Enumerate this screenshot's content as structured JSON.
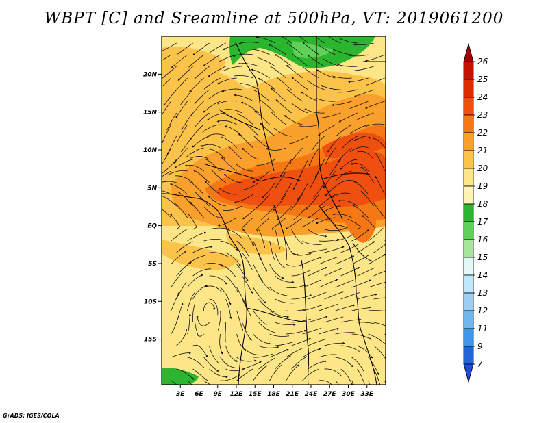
{
  "title": "WBPT [C] and Sreamline at 500hPa, VT: 2019061200",
  "footer": "GrADS: IGES/COLA",
  "map": {
    "lon_range": [
      0,
      36
    ],
    "lat_range": [
      -21,
      25
    ],
    "x_ticks": [
      {
        "value": 3,
        "label": "3E"
      },
      {
        "value": 6,
        "label": "6E"
      },
      {
        "value": 9,
        "label": "9E"
      },
      {
        "value": 12,
        "label": "12E"
      },
      {
        "value": 15,
        "label": "15E"
      },
      {
        "value": 18,
        "label": "18E"
      },
      {
        "value": 21,
        "label": "21E"
      },
      {
        "value": 24,
        "label": "24E"
      },
      {
        "value": 27,
        "label": "27E"
      },
      {
        "value": 30,
        "label": "30E"
      },
      {
        "value": 33,
        "label": "33E"
      }
    ],
    "y_ticks": [
      {
        "value": 20,
        "label": "20N"
      },
      {
        "value": 15,
        "label": "15N"
      },
      {
        "value": 10,
        "label": "10N"
      },
      {
        "value": 5,
        "label": "5N"
      },
      {
        "value": 0,
        "label": "EQ"
      },
      {
        "value": -5,
        "label": "5S"
      },
      {
        "value": -10,
        "label": "10S"
      },
      {
        "value": -15,
        "label": "15S"
      }
    ]
  },
  "colorbar": {
    "levels": [
      "26",
      "25",
      "24",
      "23",
      "22",
      "21",
      "20",
      "19",
      "18",
      "17",
      "16",
      "15",
      "14",
      "13",
      "12",
      "11",
      "9",
      "7"
    ],
    "colors": [
      "#a50000",
      "#c01400",
      "#dc2d00",
      "#f0500f",
      "#f57814",
      "#f9a02d",
      "#fcc34b",
      "#fde687",
      "#fef5b4",
      "#2cb52f",
      "#5fd158",
      "#a5e69a",
      "#e6f8f5",
      "#bfe6fa",
      "#9ad0f4",
      "#6fb8ee",
      "#3f96e6",
      "#2065d6",
      "#1e4cd8"
    ]
  },
  "chart_data": {
    "type": "heatmap",
    "variable": "WBPT [C]",
    "level": "500hPa",
    "valid_time": "2019061200",
    "colorbar_levels": [
      7,
      9,
      11,
      12,
      13,
      14,
      15,
      16,
      17,
      18,
      19,
      20,
      21,
      22,
      23,
      24,
      25,
      26
    ],
    "observed_value_range": [
      17,
      24
    ],
    "regions": [
      {
        "area": "Sahara north (15E-27E, 22N-25N)",
        "wbpt_bin": "17-18"
      },
      {
        "area": "Southwest corner (0E-6E, 20S-21S)",
        "wbpt_bin": "17-18"
      },
      {
        "area": "Sahel / Central Africa band (10E-36E, 0N-12N)",
        "wbpt_bin": "22-24"
      },
      {
        "area": "Equatorial Central Africa",
        "wbpt_bin": "20-22"
      },
      {
        "area": "Southern Africa (south of 5S)",
        "wbpt_bin": "19-20"
      }
    ]
  }
}
